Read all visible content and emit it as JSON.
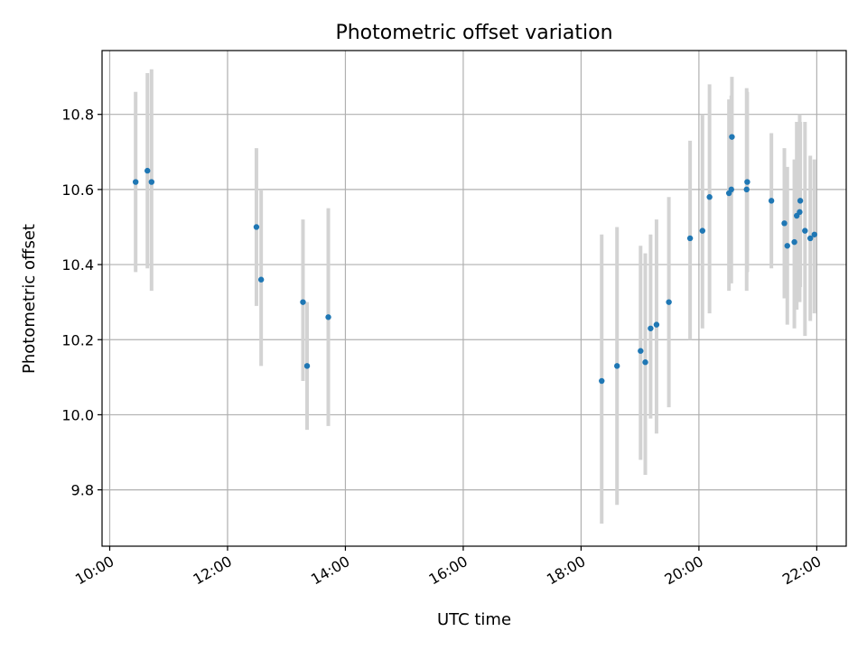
{
  "chart_data": {
    "type": "scatter",
    "title": "Photometric offset variation",
    "xlabel": "UTC time",
    "ylabel": "Photometric offset",
    "x_unit": "hour",
    "xlim": [
      9.87,
      22.5
    ],
    "ylim": [
      9.65,
      10.97
    ],
    "xticks": [
      {
        "value": 10,
        "label": "10:00"
      },
      {
        "value": 12,
        "label": "12:00"
      },
      {
        "value": 14,
        "label": "14:00"
      },
      {
        "value": 16,
        "label": "16:00"
      },
      {
        "value": 18,
        "label": "18:00"
      },
      {
        "value": 20,
        "label": "20:00"
      },
      {
        "value": 22,
        "label": "22:00"
      }
    ],
    "yticks": [
      {
        "value": 9.8,
        "label": "9.8"
      },
      {
        "value": 10.0,
        "label": "10.0"
      },
      {
        "value": 10.2,
        "label": "10.2"
      },
      {
        "value": 10.4,
        "label": "10.4"
      },
      {
        "value": 10.6,
        "label": "10.6"
      },
      {
        "value": 10.8,
        "label": "10.8"
      }
    ],
    "grid": true,
    "colors": {
      "marker": "#1f77b4",
      "errorbar": "#d3d3d3",
      "grid": "#b0b0b0"
    },
    "series": [
      {
        "points": [
          {
            "x": 10.44,
            "y": 10.62,
            "lo": 10.38,
            "hi": 10.86
          },
          {
            "x": 10.64,
            "y": 10.65,
            "lo": 10.39,
            "hi": 10.91
          },
          {
            "x": 10.71,
            "y": 10.62,
            "lo": 10.33,
            "hi": 10.92
          },
          {
            "x": 12.49,
            "y": 10.5,
            "lo": 10.29,
            "hi": 10.71
          },
          {
            "x": 12.57,
            "y": 10.36,
            "lo": 10.13,
            "hi": 10.6
          },
          {
            "x": 13.28,
            "y": 10.3,
            "lo": 10.09,
            "hi": 10.52
          },
          {
            "x": 13.35,
            "y": 10.13,
            "lo": 9.96,
            "hi": 10.3
          },
          {
            "x": 13.71,
            "y": 10.26,
            "lo": 9.97,
            "hi": 10.55
          },
          {
            "x": 18.35,
            "y": 10.09,
            "lo": 9.71,
            "hi": 10.48
          },
          {
            "x": 18.61,
            "y": 10.13,
            "lo": 9.76,
            "hi": 10.5
          },
          {
            "x": 19.01,
            "y": 10.17,
            "lo": 9.88,
            "hi": 10.45
          },
          {
            "x": 19.09,
            "y": 10.14,
            "lo": 9.84,
            "hi": 10.43
          },
          {
            "x": 19.18,
            "y": 10.23,
            "lo": 9.99,
            "hi": 10.48
          },
          {
            "x": 19.28,
            "y": 10.24,
            "lo": 9.95,
            "hi": 10.52
          },
          {
            "x": 19.49,
            "y": 10.3,
            "lo": 10.02,
            "hi": 10.58
          },
          {
            "x": 19.85,
            "y": 10.47,
            "lo": 10.2,
            "hi": 10.73
          },
          {
            "x": 20.06,
            "y": 10.49,
            "lo": 10.23,
            "hi": 10.8
          },
          {
            "x": 20.18,
            "y": 10.58,
            "lo": 10.27,
            "hi": 10.88
          },
          {
            "x": 20.51,
            "y": 10.59,
            "lo": 10.33,
            "hi": 10.84
          },
          {
            "x": 20.55,
            "y": 10.6,
            "lo": 10.35,
            "hi": 10.85
          },
          {
            "x": 20.56,
            "y": 10.74,
            "lo": 10.59,
            "hi": 10.9
          },
          {
            "x": 20.81,
            "y": 10.6,
            "lo": 10.33,
            "hi": 10.87
          },
          {
            "x": 20.82,
            "y": 10.62,
            "lo": 10.38,
            "hi": 10.86
          },
          {
            "x": 21.23,
            "y": 10.57,
            "lo": 10.39,
            "hi": 10.75
          },
          {
            "x": 21.45,
            "y": 10.51,
            "lo": 10.31,
            "hi": 10.71
          },
          {
            "x": 21.5,
            "y": 10.45,
            "lo": 10.24,
            "hi": 10.66
          },
          {
            "x": 21.62,
            "y": 10.46,
            "lo": 10.23,
            "hi": 10.68
          },
          {
            "x": 21.66,
            "y": 10.53,
            "lo": 10.28,
            "hi": 10.78
          },
          {
            "x": 21.71,
            "y": 10.54,
            "lo": 10.3,
            "hi": 10.8
          },
          {
            "x": 21.72,
            "y": 10.57,
            "lo": 10.34,
            "hi": 10.78
          },
          {
            "x": 21.8,
            "y": 10.49,
            "lo": 10.21,
            "hi": 10.78
          },
          {
            "x": 21.89,
            "y": 10.47,
            "lo": 10.25,
            "hi": 10.69
          },
          {
            "x": 21.96,
            "y": 10.48,
            "lo": 10.27,
            "hi": 10.68
          }
        ]
      }
    ]
  }
}
